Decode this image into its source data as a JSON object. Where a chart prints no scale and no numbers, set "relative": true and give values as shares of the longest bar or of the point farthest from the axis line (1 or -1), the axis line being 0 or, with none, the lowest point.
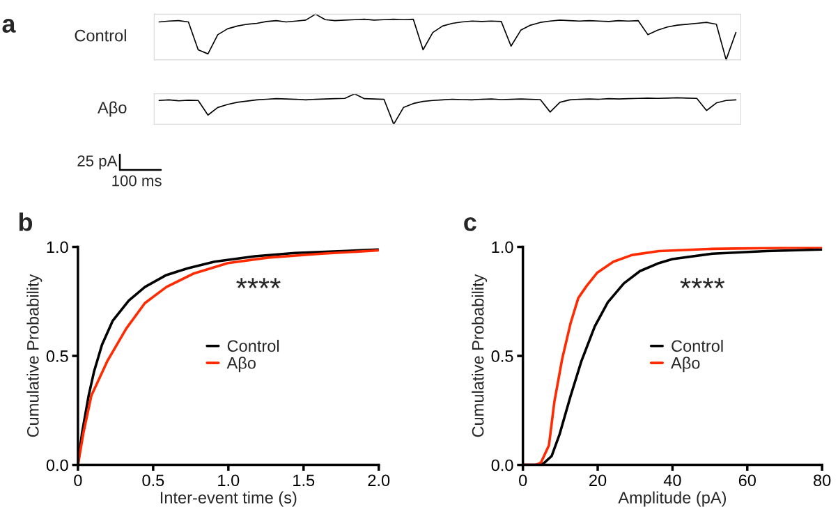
{
  "chart_data": [
    {
      "type": "line",
      "title": "a",
      "ylabel": "Control",
      "relative": true,
      "tick_labels": false,
      "categories": [
        null,
        null,
        null,
        null,
        null,
        null,
        null,
        null,
        null,
        null,
        null,
        null,
        null,
        null,
        null,
        null,
        null,
        null,
        null,
        null,
        null,
        null,
        null,
        null,
        null,
        null,
        null,
        null,
        null,
        null,
        null,
        null,
        null,
        null,
        null,
        null,
        null,
        null,
        null,
        null,
        null,
        null,
        null,
        null,
        null,
        null,
        null,
        null,
        null,
        null,
        null,
        null,
        null,
        null,
        null,
        null,
        null,
        null,
        null,
        null
      ],
      "series": [
        {
          "color": "#000000",
          "values": [
            0.83,
            0.85,
            0.86,
            0.83,
            0.22,
            0.13,
            0.55,
            0.68,
            0.74,
            0.78,
            0.8,
            0.84,
            0.86,
            0.83,
            0.85,
            0.87,
            1.0,
            0.88,
            0.86,
            0.87,
            0.88,
            0.89,
            0.87,
            0.88,
            0.89,
            0.88,
            0.89,
            0.22,
            0.6,
            0.74,
            0.8,
            0.83,
            0.85,
            0.84,
            0.85,
            0.84,
            0.3,
            0.65,
            0.76,
            0.82,
            0.85,
            0.87,
            0.86,
            0.85,
            0.86,
            0.85,
            0.84,
            0.86,
            0.85,
            0.86,
            0.55,
            0.65,
            0.72,
            0.76,
            0.78,
            0.8,
            0.82,
            0.78,
            0.0,
            0.6
          ]
        }
      ]
    },
    {
      "type": "line",
      "ylabel": "Aβo",
      "relative": true,
      "tick_labels": false,
      "annotations": [
        "25 pA",
        "100 ms"
      ],
      "categories": [
        null,
        null,
        null,
        null,
        null,
        null,
        null,
        null,
        null,
        null,
        null,
        null,
        null,
        null,
        null,
        null,
        null,
        null,
        null,
        null,
        null,
        null,
        null,
        null,
        null,
        null,
        null,
        null,
        null,
        null,
        null,
        null,
        null,
        null,
        null,
        null,
        null,
        null,
        null,
        null,
        null,
        null,
        null,
        null,
        null,
        null,
        null,
        null,
        null,
        null,
        null,
        null,
        null,
        null,
        null,
        null,
        null,
        null,
        null,
        null
      ],
      "series": [
        {
          "color": "#000000",
          "values": [
            0.78,
            0.8,
            0.77,
            0.79,
            0.78,
            0.3,
            0.55,
            0.65,
            0.72,
            0.76,
            0.8,
            0.82,
            0.84,
            0.83,
            0.82,
            0.8,
            0.82,
            0.83,
            0.84,
            0.85,
            1.0,
            0.84,
            0.83,
            0.82,
            0.0,
            0.55,
            0.68,
            0.75,
            0.78,
            0.8,
            0.82,
            0.81,
            0.8,
            0.82,
            0.83,
            0.81,
            0.82,
            0.83,
            0.82,
            0.81,
            0.4,
            0.72,
            0.8,
            0.82,
            0.83,
            0.82,
            0.84,
            0.83,
            0.84,
            0.85,
            0.86,
            0.85,
            0.86,
            0.87,
            0.86,
            0.85,
            0.45,
            0.7,
            0.78,
            0.8
          ]
        }
      ]
    },
    {
      "type": "line",
      "title": "b",
      "xlabel": "Inter-event time (s)",
      "ylabel": "Cumulative Probability",
      "xlim": [
        0,
        2.0
      ],
      "ylim": [
        0,
        1.0
      ],
      "xticks": [
        {
          "value": 0,
          "label": "0"
        },
        {
          "value": 0.5,
          "label": "0.5"
        },
        {
          "value": 1.0,
          "label": "1.0"
        },
        {
          "value": 1.5,
          "label": "1.5"
        },
        {
          "value": 2.0,
          "label": "2.0"
        }
      ],
      "yticks": [
        {
          "value": 0,
          "label": "0.0"
        },
        {
          "value": 0.5,
          "label": "0.5"
        },
        {
          "value": 1.0,
          "label": "1.0"
        }
      ],
      "legend": "center",
      "annotations": [
        "****"
      ],
      "series": [
        {
          "name": "Control",
          "color": "#000000",
          "x": [
            0,
            0.027,
            0.071,
            0.107,
            0.16,
            0.232,
            0.338,
            0.445,
            0.588,
            0.73,
            0.908,
            1.175,
            1.443,
            2.0
          ],
          "values": [
            0,
            0.145,
            0.317,
            0.428,
            0.551,
            0.662,
            0.754,
            0.816,
            0.871,
            0.902,
            0.932,
            0.957,
            0.972,
            0.988
          ]
        },
        {
          "name": "Aβo",
          "color": "#ff2a00",
          "x": [
            0,
            0.036,
            0.089,
            0.196,
            0.321,
            0.445,
            0.588,
            0.766,
            0.997,
            1.265,
            1.621,
            2.0
          ],
          "values": [
            0,
            0.145,
            0.317,
            0.477,
            0.625,
            0.742,
            0.816,
            0.877,
            0.926,
            0.951,
            0.969,
            0.984
          ]
        }
      ]
    },
    {
      "type": "line",
      "title": "c",
      "xlabel": "Amplitude (pA)",
      "ylabel": "Cumulative Probability",
      "xlim": [
        0,
        80
      ],
      "ylim": [
        0,
        1.0
      ],
      "xticks": [
        0,
        20,
        40,
        60,
        80
      ],
      "yticks": [
        {
          "value": 0,
          "label": "0.0"
        },
        {
          "value": 0.5,
          "label": "0.5"
        },
        {
          "value": 1.0,
          "label": "1.0"
        }
      ],
      "legend": "center",
      "annotations": [
        "****"
      ],
      "series": [
        {
          "name": "Control",
          "color": "#000000",
          "x": [
            0,
            3.4,
            5.5,
            7.7,
            9.8,
            12.7,
            15.6,
            19.2,
            22.7,
            27,
            31.3,
            36.4,
            40,
            50.7,
            65.1,
            80
          ],
          "values": [
            0,
            0,
            0.006,
            0.041,
            0.14,
            0.313,
            0.474,
            0.635,
            0.746,
            0.833,
            0.889,
            0.926,
            0.944,
            0.969,
            0.981,
            0.988
          ]
        },
        {
          "name": "Aβo",
          "color": "#ff2a00",
          "x": [
            0,
            3.4,
            4.8,
            6.96,
            8.4,
            10.5,
            12.7,
            14.8,
            17,
            19.9,
            24.2,
            29.2,
            36.4,
            50.7,
            80
          ],
          "values": [
            0,
            0,
            0.01,
            0.09,
            0.288,
            0.486,
            0.647,
            0.765,
            0.82,
            0.882,
            0.932,
            0.963,
            0.981,
            0.991,
            0.999
          ]
        }
      ]
    }
  ]
}
